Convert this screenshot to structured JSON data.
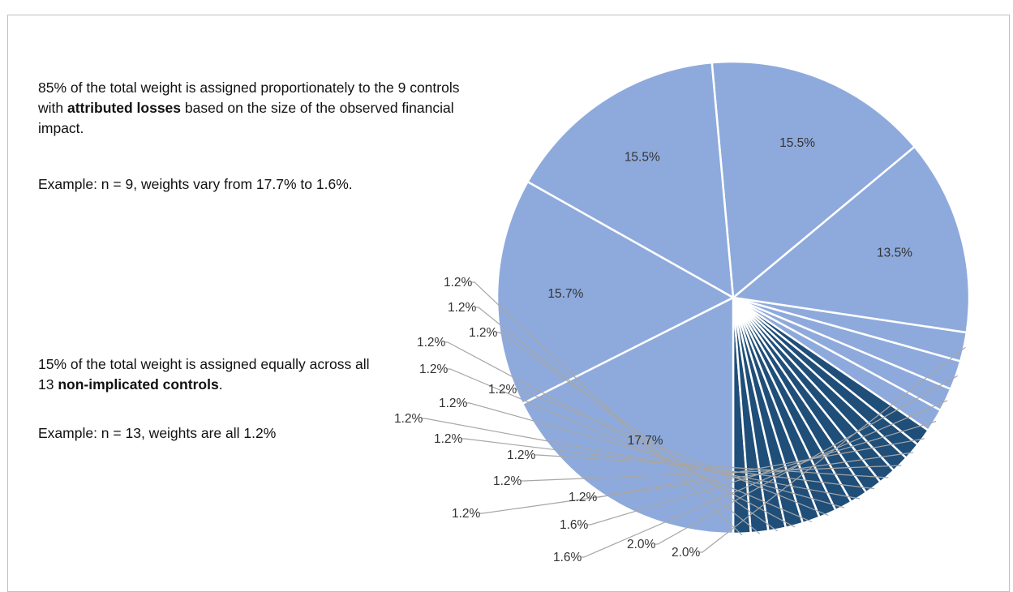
{
  "notes": {
    "attributed": {
      "before": "85% of the total weight is assigned proportionately to the 9 controls with ",
      "bold": "attributed losses",
      "after": " based on the size of the observed financial impact.",
      "example": "Example:  n = 9, weights vary from 17.7% to 1.6%."
    },
    "non_implicated": {
      "before": "15% of the total weight is assigned equally across all 13 ",
      "bold": "non-implicated controls",
      "after": ".",
      "example": "Example: n = 13, weights are all 1.2%"
    }
  },
  "colors": {
    "attributed": "#8eaadc",
    "non_implicated": "#1f4e79",
    "separator": "#ffffff",
    "leader": "#a6a6a6",
    "label": "#333333"
  },
  "chart_data": {
    "type": "pie",
    "title": "",
    "start_angle_deg": 270,
    "direction": "counterclockwise",
    "slices": [
      {
        "value": 1.2,
        "label": "1.2%",
        "group": "non-implicated controls"
      },
      {
        "value": 1.2,
        "label": "1.2%",
        "group": "non-implicated controls"
      },
      {
        "value": 1.2,
        "label": "1.2%",
        "group": "non-implicated controls"
      },
      {
        "value": 1.2,
        "label": "1.2%",
        "group": "non-implicated controls"
      },
      {
        "value": 1.2,
        "label": "1.2%",
        "group": "non-implicated controls"
      },
      {
        "value": 1.2,
        "label": "1.2%",
        "group": "non-implicated controls"
      },
      {
        "value": 1.2,
        "label": "1.2%",
        "group": "non-implicated controls"
      },
      {
        "value": 1.2,
        "label": "1.2%",
        "group": "non-implicated controls"
      },
      {
        "value": 1.2,
        "label": "1.2%",
        "group": "non-implicated controls"
      },
      {
        "value": 1.2,
        "label": "1.2%",
        "group": "non-implicated controls"
      },
      {
        "value": 1.2,
        "label": "1.2%",
        "group": "non-implicated controls"
      },
      {
        "value": 1.2,
        "label": "1.2%",
        "group": "non-implicated controls"
      },
      {
        "value": 1.2,
        "label": "1.2%",
        "group": "non-implicated controls"
      },
      {
        "value": 1.6,
        "label": "1.6%",
        "group": "attributed losses"
      },
      {
        "value": 1.6,
        "label": "1.6%",
        "group": "attributed losses"
      },
      {
        "value": 2.0,
        "label": "2.0%",
        "group": "attributed losses"
      },
      {
        "value": 2.0,
        "label": "2.0%",
        "group": "attributed losses"
      },
      {
        "value": 13.5,
        "label": "13.5%",
        "group": "attributed losses"
      },
      {
        "value": 15.5,
        "label": "15.5%",
        "group": "attributed losses"
      },
      {
        "value": 15.5,
        "label": "15.5%",
        "group": "attributed losses"
      },
      {
        "value": 15.7,
        "label": "15.7%",
        "group": "attributed losses"
      },
      {
        "value": 17.7,
        "label": "17.7%",
        "group": "attributed losses"
      }
    ]
  }
}
